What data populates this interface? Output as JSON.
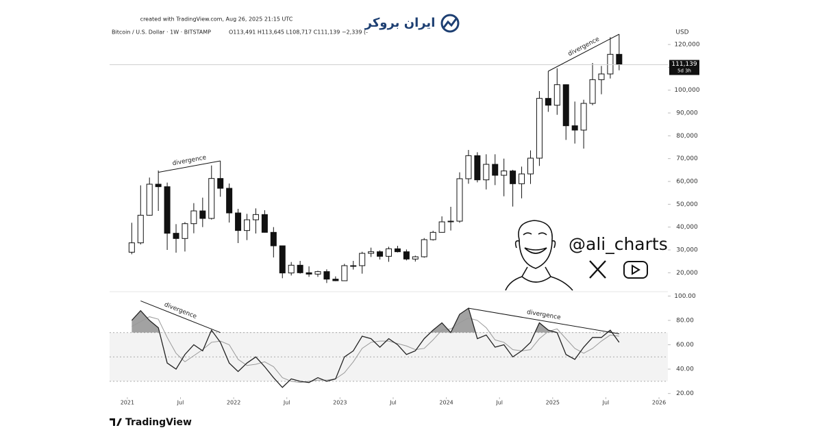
{
  "header": {
    "created": "created with TradingView.com, Aug 26, 2025 21:15 UTC",
    "symbol": "Bitcoin / U.S. Dollar · 1W · BITSTAMP",
    "ohlc": "O113,491 H113,645 L108,717 C111,139 −2,339 (-",
    "logo": "ایران بروکر"
  },
  "overlay": {
    "handle": "@ali_charts"
  },
  "footer": {
    "brand": "TradingView"
  },
  "chart_data": [
    {
      "type": "candlestick",
      "y_label": "USD",
      "up_color": "#ffffff",
      "down_color": "#111111",
      "x": [
        "2021-01",
        "2021-02",
        "2021-03",
        "2021-04",
        "2021-05",
        "2021-06",
        "2021-07",
        "2021-08",
        "2021-09",
        "2021-10",
        "2021-11",
        "2021-12",
        "2022-01",
        "2022-02",
        "2022-03",
        "2022-04",
        "2022-05",
        "2022-06",
        "2022-07",
        "2022-08",
        "2022-09",
        "2022-10",
        "2022-11",
        "2022-12",
        "2023-01",
        "2023-02",
        "2023-03",
        "2023-04",
        "2023-05",
        "2023-06",
        "2023-07",
        "2023-08",
        "2023-09",
        "2023-10",
        "2023-11",
        "2023-12",
        "2024-01",
        "2024-02",
        "2024-03",
        "2024-04",
        "2024-05",
        "2024-06",
        "2024-07",
        "2024-08",
        "2024-09",
        "2024-10",
        "2024-11",
        "2024-12",
        "2025-01",
        "2025-02",
        "2025-03",
        "2025-04",
        "2025-05",
        "2025-06",
        "2025-07",
        "2025-08"
      ],
      "open": [
        29000,
        33100,
        45200,
        58800,
        57700,
        37300,
        35000,
        41500,
        47100,
        43800,
        61300,
        57000,
        46200,
        38500,
        43200,
        45500,
        37700,
        31800,
        19900,
        23300,
        20000,
        19400,
        20500,
        17200,
        16500,
        23100,
        23100,
        28500,
        29200,
        27200,
        30500,
        29200,
        26000,
        27000,
        34500,
        37700,
        42300,
        42600,
        61200,
        71300,
        60700,
        67500,
        62700,
        64600,
        59000,
        63300,
        70200,
        96400,
        93400,
        102400,
        84400,
        82500,
        94200,
        104600,
        107100,
        115700
      ],
      "high": [
        41900,
        58300,
        61700,
        64800,
        59500,
        41300,
        42200,
        50500,
        52900,
        67000,
        69000,
        59100,
        48000,
        45800,
        48200,
        47400,
        40000,
        31900,
        24700,
        25200,
        22800,
        20900,
        21500,
        18400,
        23900,
        25200,
        29200,
        31000,
        29800,
        31400,
        31800,
        30200,
        27500,
        35200,
        38400,
        44700,
        48900,
        64000,
        73800,
        72800,
        71900,
        71900,
        70000,
        65100,
        66500,
        73600,
        99600,
        108300,
        109600,
        102500,
        95000,
        95800,
        111900,
        110600,
        123200,
        124500
      ],
      "low": [
        28100,
        32400,
        45000,
        47100,
        30000,
        28800,
        29300,
        37300,
        40000,
        43300,
        53300,
        42000,
        33000,
        34300,
        37200,
        37600,
        26700,
        17600,
        18800,
        19600,
        18200,
        18200,
        15500,
        16300,
        16500,
        21400,
        19600,
        26900,
        25800,
        24800,
        28900,
        25400,
        24900,
        26600,
        34100,
        37600,
        38500,
        41900,
        59000,
        59600,
        56500,
        58400,
        53500,
        49000,
        52600,
        58900,
        66800,
        90500,
        89200,
        78200,
        76600,
        74400,
        93400,
        98200,
        105100,
        108700
      ],
      "close": [
        33100,
        45200,
        58800,
        57700,
        37300,
        35000,
        41500,
        47100,
        43800,
        61300,
        57000,
        46200,
        38500,
        43200,
        45500,
        37700,
        31800,
        19900,
        23300,
        20000,
        19400,
        20500,
        17200,
        16500,
        23100,
        23100,
        28500,
        29200,
        27200,
        30500,
        29200,
        26000,
        27000,
        34500,
        37700,
        42300,
        42600,
        61200,
        71300,
        60700,
        67500,
        62700,
        64600,
        59000,
        63300,
        70200,
        96400,
        93400,
        102400,
        84400,
        82500,
        94200,
        104600,
        107100,
        115700,
        111139
      ],
      "last": {
        "value": 111139,
        "label": "111,139"
      },
      "countdown": "5d 3h",
      "xlim": [
        "2020-11",
        "2026-02"
      ],
      "ylim": [
        12000,
        129000
      ],
      "yticks": [
        {
          "value": 20000,
          "label": "20,000"
        },
        {
          "value": 30000,
          "label": "30,000"
        },
        {
          "value": 40000,
          "label": "40,000"
        },
        {
          "value": 50000,
          "label": "50,000"
        },
        {
          "value": 60000,
          "label": "60,000"
        },
        {
          "value": 70000,
          "label": "70,000"
        },
        {
          "value": 80000,
          "label": "80,000"
        },
        {
          "value": 90000,
          "label": "90,000"
        },
        {
          "value": 100000,
          "label": "100,000"
        },
        {
          "value": 110000,
          "label": "110,000"
        },
        {
          "value": 120000,
          "label": "120,000"
        }
      ],
      "annotations": [
        {
          "text": "divergence",
          "x": [
            "2021-04",
            "2021-11"
          ],
          "y": [
            64000,
            69000
          ]
        },
        {
          "text": "divergence",
          "x": [
            "2024-12",
            "2025-08"
          ],
          "y": [
            108300,
            124500
          ]
        }
      ]
    },
    {
      "type": "line",
      "color": "#222222",
      "ma_color": "#999999",
      "x": [
        "2021-01",
        "2021-02",
        "2021-03",
        "2021-04",
        "2021-05",
        "2021-06",
        "2021-07",
        "2021-08",
        "2021-09",
        "2021-10",
        "2021-11",
        "2021-12",
        "2022-01",
        "2022-02",
        "2022-03",
        "2022-04",
        "2022-05",
        "2022-06",
        "2022-07",
        "2022-08",
        "2022-09",
        "2022-10",
        "2022-11",
        "2022-12",
        "2023-01",
        "2023-02",
        "2023-03",
        "2023-04",
        "2023-05",
        "2023-06",
        "2023-07",
        "2023-08",
        "2023-09",
        "2023-10",
        "2023-11",
        "2023-12",
        "2024-01",
        "2024-02",
        "2024-03",
        "2024-04",
        "2024-05",
        "2024-06",
        "2024-07",
        "2024-08",
        "2024-09",
        "2024-10",
        "2024-11",
        "2024-12",
        "2025-01",
        "2025-02",
        "2025-03",
        "2025-04",
        "2025-05",
        "2025-06",
        "2025-07",
        "2025-08"
      ],
      "values": [
        80,
        88,
        80,
        74,
        45,
        40,
        52,
        60,
        55,
        72,
        62,
        45,
        38,
        45,
        50,
        42,
        33,
        25,
        32,
        30,
        29,
        33,
        30,
        32,
        50,
        55,
        67,
        65,
        58,
        65,
        60,
        52,
        55,
        65,
        72,
        78,
        70,
        85,
        90,
        65,
        68,
        58,
        60,
        50,
        55,
        62,
        78,
        72,
        70,
        52,
        48,
        58,
        66,
        66,
        72,
        62
      ],
      "ma": [
        75,
        79,
        83,
        81,
        66,
        53,
        46,
        51,
        56,
        62,
        63,
        60,
        48,
        43,
        44,
        46,
        42,
        33,
        30,
        29,
        30,
        31,
        31,
        32,
        37,
        46,
        57,
        62,
        63,
        63,
        61,
        59,
        56,
        57,
        64,
        72,
        73,
        78,
        82,
        80,
        74,
        64,
        62,
        56,
        55,
        56,
        65,
        71,
        73,
        65,
        57,
        53,
        57,
        63,
        68,
        67
      ],
      "bands": [
        30,
        50,
        70
      ],
      "xlim": [
        "2020-11",
        "2026-02"
      ],
      "ylim": [
        17,
        103
      ],
      "yticks": [
        {
          "value": 20,
          "label": "20.00"
        },
        {
          "value": 40,
          "label": "40.00"
        },
        {
          "value": 60,
          "label": "60.00"
        },
        {
          "value": 80,
          "label": "80.00"
        },
        {
          "value": 100,
          "label": "100.00"
        }
      ],
      "xticks": [
        {
          "value": "2021-01",
          "label": "2021"
        },
        {
          "value": "2021-07",
          "label": "Jul"
        },
        {
          "value": "2022-01",
          "label": "2022"
        },
        {
          "value": "2022-07",
          "label": "Jul"
        },
        {
          "value": "2023-01",
          "label": "2023"
        },
        {
          "value": "2023-07",
          "label": "Jul"
        },
        {
          "value": "2024-01",
          "label": "2024"
        },
        {
          "value": "2024-07",
          "label": "Jul"
        },
        {
          "value": "2025-01",
          "label": "2025"
        },
        {
          "value": "2025-07",
          "label": "Jul"
        },
        {
          "value": "2026-01",
          "label": "2026"
        }
      ],
      "annotations": [
        {
          "text": "divergence",
          "x": [
            "2021-02",
            "2021-11"
          ],
          "y": [
            96,
            70
          ]
        },
        {
          "text": "divergence",
          "x": [
            "2024-03",
            "2025-08"
          ],
          "y": [
            90,
            69
          ]
        }
      ]
    }
  ]
}
